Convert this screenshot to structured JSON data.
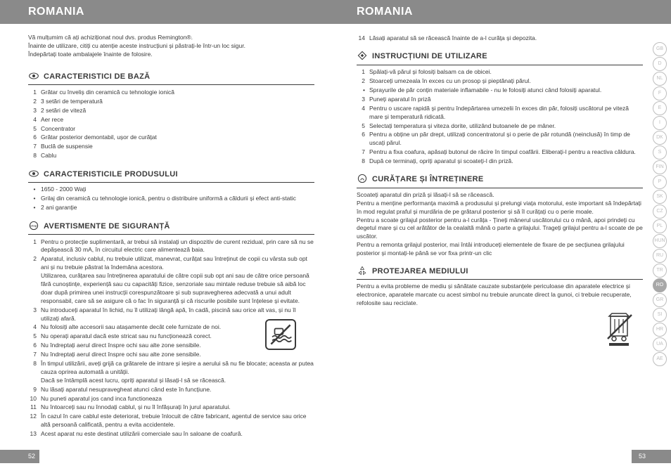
{
  "left": {
    "header": "ROMANIA",
    "intro": [
      "Vă mulțumim că ați achiziționat noul dvs. produs Remington®.",
      "Înainte de utilizare, citiți cu atenție aceste instrucțiuni și păstrați-le într-un loc sigur.",
      "Îndepărtați toate ambalajele înainte de folosire."
    ],
    "sections": [
      {
        "icon": "eye",
        "title": "CARACTERISTICI DE BAZĂ",
        "type": "numbered",
        "items": [
          "Grătar cu înveliș din ceramică cu tehnologie ionică",
          "3 setări de temperatură",
          "2 setări de viteză",
          "Aer rece",
          "Concentrator",
          "Grătar posterior demontabil, ușor de curățat",
          "Buclă de suspensie",
          "Cablu"
        ]
      },
      {
        "icon": "eye",
        "title": "CARACTERISTICILE PRODUSULUI",
        "type": "bullets",
        "items": [
          "1650 - 2000 Wați",
          "Grilaj din ceramică cu tehnologie ionică, pentru o distribuire uniformă a căldurii și efect anti-static",
          "2 ani garanție"
        ]
      },
      {
        "icon": "stop",
        "title": "AVERTISMENTE DE SIGURANȚĂ",
        "type": "numbered",
        "items": [
          "Pentru o protecție suplimentară, ar trebui să instalați un dispozitiv de curent rezidual, prin care să nu se depășească 30 mA, în circuitul electric care alimentează baia.",
          "Aparatul, inclusiv cablul, nu trebuie utilizat, manevrat, curățat sau întreținut de copii cu vârsta sub opt ani și nu trebuie păstrat la îndemâna acestora.\nUtilizarea, curățarea sau întreținerea aparatului de către copii sub opt ani sau de către orice persoană fără cunoștințe, experiență sau cu capacități fizice, senzoriale sau mintale reduse trebuie să aibă loc doar după primirea unei instrucții corespunzătoare și sub supravegherea adecvată a unui adult responsabil, care să se asigure că o fac în siguranță și că riscurile posibile sunt înțelese și evitate.",
          "Nu introduceți aparatul în lichid, nu îl utilizați lângă apă, în cadă, piscină sau orice alt vas, și nu îl utilizați afară.",
          "Nu folosiți alte accesorii sau atașamente decât cele furnizate de noi.",
          "Nu operați aparatul dacă este stricat sau nu funcționează corect.",
          "Nu îndreptați aerul direct înspre ochi sau alte zone sensibile.",
          "Nu îndreptați aerul direct înspre ochi sau alte zone sensibile.",
          "În timpul utilizării, aveți grijă ca grătarele de intrare și ieșire a aerului să nu fie blocate; aceasta ar putea cauza oprirea automată a unității.\nDacă se întâmplă acest lucru, opriți aparatul și lăsați-l să se răcească.",
          "Nu lăsați aparatul nesupravegheat atunci când este în funcțiune.",
          "Nu puneti aparatul jos cand inca functioneaza",
          "Nu întoarceți sau nu înnodați cablul, și nu îl înfășurați în jurul aparatului.",
          "În cazul în care cablul este deteriorat, trebuie înlocuit de către fabricant, agentul de service sau orice altă persoană calificată, pentru a evita accidentele.",
          "Acest aparat nu este destinat utilizării comerciale sau în saloane de coafură."
        ]
      }
    ],
    "page_num": "52"
  },
  "right": {
    "header": "ROMANIA",
    "continued_item": {
      "num": "14",
      "text": "Lăsați aparatul să se răcească înainte de a-l curăța și depozita."
    },
    "sections": [
      {
        "icon": "diamond",
        "title": "INSTRUCȚIUNI DE UTILIZARE",
        "type": "numbered",
        "items": [
          {
            "n": "1",
            "t": "Spălați-vă părul și folosiți balsam ca de obicei."
          },
          {
            "n": "2",
            "t": "Stoarceți umezeala în exces cu un prosop și pieptănați părul."
          },
          {
            "n": "•",
            "t": "Sprayurile de păr conțin materiale inflamabile - nu le folosiți atunci când folosiți aparatul."
          },
          {
            "n": "3",
            "t": "Puneți aparatul în priză"
          },
          {
            "n": "4",
            "t": "Pentru o uscare rapidă și pentru îndepărtarea umezelii în exces din păr, folosiți uscătorul pe viteză mare și temperatură ridicată."
          },
          {
            "n": "5",
            "t": "Selectați temperatura și viteza dorite, utilizând butoanele de pe mâner."
          },
          {
            "n": "6",
            "t": "Pentru a obține un păr drept, utilizați concentratorul și o perie de păr rotundă (neinclusă) în timp de uscați părul."
          },
          {
            "n": "7",
            "t": "Pentru a fixa coafura, apăsați butonul de răcire în timpul coafării. Eliberați-l pentru a reactiva căldura."
          },
          {
            "n": "8",
            "t": "După ce terminați, opriți aparatul și scoateți-l din priză."
          }
        ]
      },
      {
        "icon": "clean",
        "title": "CURĂȚARE ȘI ÎNTREȚINERE",
        "type": "para",
        "text": "Scoateți aparatul din priză și lăsați-l să se răcească.\nPentru a menține performanța maximă a produsului și prelungi viața motorului, este important să îndepărtați în mod regulat praful și murdăria de pe grătarul posterior și să îl curățați cu o perie moale.\nPentru a scoate grilajul posterior pentru a-l curăța - Țineți mânerul uscătorului cu o mână, apoi prindeți cu degetul mare și cu cel arătător de la cealaltă mână o parte a grilajului. Trageți grilajul pentru a-l scoate de pe uscător.\nPentru a remonta grilajul posterior, mai întâi introduceți elementele de fixare de pe secțiunea grilajului posterior și montați-le până se vor fixa printr-un clic"
      },
      {
        "icon": "recycle",
        "title": "PROTEJAREA MEDIULUI",
        "type": "para",
        "text": "Pentru a evita probleme de mediu și sănătate cauzate substanțele periculoase din aparatele electrice și electronice, aparatele marcate cu acest simbol nu trebuie aruncate direct la gunoi, ci trebuie recuperate, refolosite sau reciclate."
      }
    ],
    "lang_tabs": [
      "GB",
      "D",
      "NL",
      "F",
      "E",
      "I",
      "DK",
      "S",
      "FIN",
      "P",
      "SK",
      "CZ",
      "PL",
      "HUN",
      "RU",
      "TR",
      "RO",
      "GR",
      "SI",
      "HR",
      "UA",
      "AE"
    ],
    "active_lang": "RO",
    "page_num": "53"
  }
}
